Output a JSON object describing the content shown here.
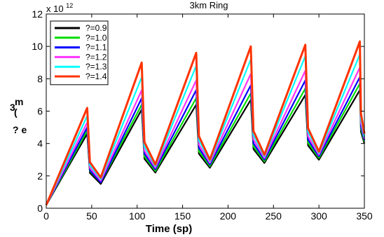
{
  "chart_data": {
    "type": "line",
    "title": "3km Ring",
    "xlabel": "Time (sp)",
    "ylabel_lines": [
      "m",
      "(",
      "? e"
    ],
    "ylabel_prefix": "3",
    "y_exponent_base": "x 10",
    "y_exponent_power": "12",
    "xlim": [
      0,
      350
    ],
    "ylim": [
      0,
      12
    ],
    "xticks": [
      0,
      50,
      100,
      150,
      200,
      250,
      300,
      350
    ],
    "yticks": [
      0,
      2,
      4,
      6,
      8,
      10,
      12
    ],
    "grid": false,
    "legend_position": "top-left",
    "series": [
      {
        "name": "?=0.9",
        "color": "#000000",
        "peaks": [
          4.6,
          6.1,
          6.4,
          6.7,
          7.0,
          7.3
        ],
        "troughs": [
          1.5,
          2.2,
          2.5,
          2.8,
          3.0,
          4.0
        ]
      },
      {
        "name": "?=1.0",
        "color": "#00dd00",
        "peaks": [
          4.8,
          6.4,
          6.8,
          7.1,
          7.4,
          7.7
        ],
        "troughs": [
          1.6,
          2.3,
          2.6,
          2.9,
          3.1,
          4.1
        ]
      },
      {
        "name": "?=1.1",
        "color": "#0000ff",
        "peaks": [
          5.0,
          6.8,
          7.3,
          7.6,
          7.9,
          8.1
        ],
        "troughs": [
          1.6,
          2.4,
          2.7,
          3.0,
          3.2,
          4.2
        ]
      },
      {
        "name": "?=1.2",
        "color": "#ff33ff",
        "peaks": [
          5.3,
          7.3,
          7.9,
          8.3,
          8.5,
          8.7
        ],
        "troughs": [
          1.7,
          2.5,
          2.8,
          3.1,
          3.3,
          4.3
        ]
      },
      {
        "name": "?=1.3",
        "color": "#00ffff",
        "peaks": [
          5.7,
          8.1,
          8.8,
          9.2,
          9.4,
          9.5
        ],
        "troughs": [
          1.8,
          2.6,
          2.9,
          3.2,
          3.4,
          4.4
        ]
      },
      {
        "name": "?=1.4",
        "color": "#ff3300",
        "peaks": [
          6.2,
          9.0,
          9.6,
          10.0,
          10.1,
          10.3
        ],
        "troughs": [
          1.9,
          2.7,
          3.0,
          3.3,
          3.5,
          4.6
        ]
      }
    ],
    "peak_times": [
      45,
      105,
      165,
      225,
      285,
      345
    ],
    "trough_times": [
      60,
      120,
      180,
      240,
      300,
      350
    ],
    "start_value": 0.2
  }
}
